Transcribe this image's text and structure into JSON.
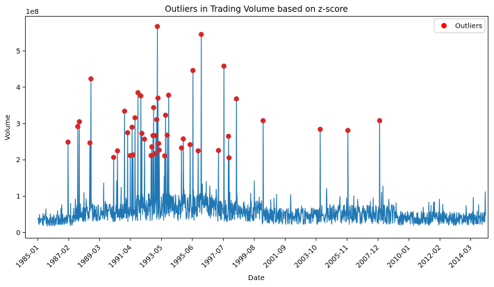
{
  "chart_data": {
    "type": "line",
    "title": "Outliers in Trading Volume based on z-score",
    "xlabel": "Date",
    "ylabel": "Volume",
    "y_offset_text": "1e8",
    "y_scale_multiplier": 100000000,
    "xlim": [
      "1984-03-01",
      "2015-05-01"
    ],
    "ylim": [
      -0.15,
      5.95
    ],
    "x_ticks": [
      "1985-01",
      "1987-02",
      "1989-03",
      "1991-04",
      "1993-05",
      "1995-06",
      "1997-07",
      "1999-08",
      "2001-09",
      "2003-10",
      "2005-11",
      "2007-12",
      "2010-01",
      "2012-02",
      "2014-03"
    ],
    "y_ticks": [
      0,
      1,
      2,
      3,
      4,
      5
    ],
    "grid": false,
    "legend_position": "top-right",
    "colors": {
      "line": "#1f77b4",
      "outlier": "#d62728",
      "outlier_legend": "#ff0000"
    },
    "series": [
      {
        "name": "Outliers",
        "kind": "scatter",
        "points": [
          [
            "1987-01-15",
            2.49
          ],
          [
            "1987-09-10",
            2.92
          ],
          [
            "1987-10-20",
            3.05
          ],
          [
            "1988-07-05",
            2.47
          ],
          [
            "1988-08-01",
            4.23
          ],
          [
            "1990-02-10",
            2.07
          ],
          [
            "1990-05-15",
            2.25
          ],
          [
            "1990-11-05",
            3.34
          ],
          [
            "1991-01-20",
            2.75
          ],
          [
            "1991-03-25",
            2.12
          ],
          [
            "1991-05-10",
            2.9
          ],
          [
            "1991-06-01",
            2.14
          ],
          [
            "1991-07-20",
            3.16
          ],
          [
            "1991-10-01",
            3.85
          ],
          [
            "1991-12-10",
            3.76
          ],
          [
            "1992-01-05",
            2.73
          ],
          [
            "1992-03-10",
            2.57
          ],
          [
            "1992-08-20",
            2.12
          ],
          [
            "1992-09-05",
            2.36
          ],
          [
            "1992-10-05",
            2.67
          ],
          [
            "1992-10-20",
            3.44
          ],
          [
            "1992-11-25",
            2.17
          ],
          [
            "1992-12-10",
            2.67
          ],
          [
            "1993-01-05",
            3.11
          ],
          [
            "1993-01-20",
            5.67
          ],
          [
            "1993-02-05",
            3.7
          ],
          [
            "1993-02-20",
            2.45
          ],
          [
            "1993-03-05",
            2.27
          ],
          [
            "1993-07-20",
            2.11
          ],
          [
            "1993-08-10",
            3.23
          ],
          [
            "1993-09-20",
            2.68
          ],
          [
            "1993-10-25",
            3.78
          ],
          [
            "1994-09-05",
            2.33
          ],
          [
            "1994-10-20",
            2.58
          ],
          [
            "1995-04-05",
            2.42
          ],
          [
            "1995-06-15",
            4.46
          ],
          [
            "1995-10-20",
            2.25
          ],
          [
            "1996-01-05",
            5.45
          ],
          [
            "1997-03-05",
            2.26
          ],
          [
            "1997-07-15",
            4.58
          ],
          [
            "1997-11-05",
            2.65
          ],
          [
            "1997-11-20",
            2.06
          ],
          [
            "1998-05-20",
            3.68
          ],
          [
            "2000-03-05",
            3.08
          ],
          [
            "2004-01-10",
            2.84
          ],
          [
            "2005-11-20",
            2.81
          ],
          [
            "2008-01-10",
            3.08
          ]
        ]
      }
    ]
  }
}
